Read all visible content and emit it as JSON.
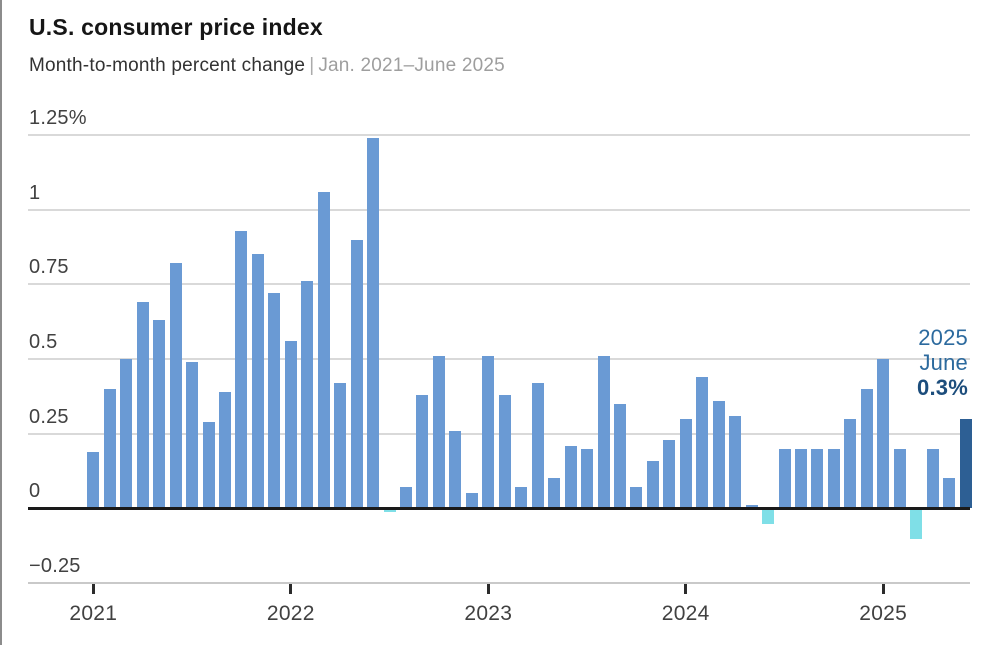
{
  "header": {
    "title": "U.S. consumer price index",
    "subtitle_main": "Month-to-month percent change",
    "subtitle_separator": "|",
    "subtitle_range": "Jan. 2021–June 2025"
  },
  "chart_data": {
    "type": "bar",
    "title": "U.S. consumer price index",
    "subtitle": "Month-to-month percent change",
    "period": "Jan. 2021–June 2025",
    "unit": "percent",
    "ylim": [
      -0.25,
      1.25
    ],
    "grid": true,
    "y_ticks": [
      {
        "value": 1.25,
        "label": "1.25%"
      },
      {
        "value": 1.0,
        "label": "1"
      },
      {
        "value": 0.75,
        "label": "0.75"
      },
      {
        "value": 0.5,
        "label": "0.5"
      },
      {
        "value": 0.25,
        "label": "0.25"
      },
      {
        "value": 0.0,
        "label": "0"
      },
      {
        "value": -0.25,
        "label": "−0.25"
      }
    ],
    "x_year_ticks": [
      "2021",
      "2022",
      "2023",
      "2024",
      "2025"
    ],
    "series": [
      {
        "year": "2021",
        "values": [
          0.19,
          0.4,
          0.5,
          0.69,
          0.63,
          0.82,
          0.49,
          0.29,
          0.39,
          0.93,
          0.85,
          0.72
        ]
      },
      {
        "year": "2022",
        "values": [
          0.56,
          0.76,
          1.06,
          0.42,
          0.9,
          1.24,
          -0.01,
          0.07,
          0.38,
          0.51,
          0.26,
          0.05
        ]
      },
      {
        "year": "2023",
        "values": [
          0.51,
          0.38,
          0.07,
          0.42,
          0.1,
          0.21,
          0.2,
          0.51,
          0.35,
          0.07,
          0.16,
          0.23
        ]
      },
      {
        "year": "2024",
        "values": [
          0.3,
          0.44,
          0.36,
          0.31,
          0.01,
          -0.05,
          0.2,
          0.2,
          0.2,
          0.2,
          0.3,
          0.4
        ]
      },
      {
        "year": "2025",
        "values": [
          0.5,
          0.2,
          -0.1,
          0.2,
          0.1,
          0.3
        ]
      }
    ],
    "annotation": {
      "year": "2025",
      "month": "June",
      "value": "0.3%"
    },
    "colors": {
      "bar": "#6a9ad4",
      "bar_negative": "#7fdfe7",
      "bar_highlight": "#2d5f94",
      "annotation_year_month": "#2c6a9e",
      "annotation_value": "#1c4d7c",
      "gridline": "#d9d9d9",
      "zero_line": "#1a1a1a",
      "bottom_axis": "#c9c9c9",
      "tick": "#2b2b2b"
    },
    "highlight_last_bar": true
  }
}
